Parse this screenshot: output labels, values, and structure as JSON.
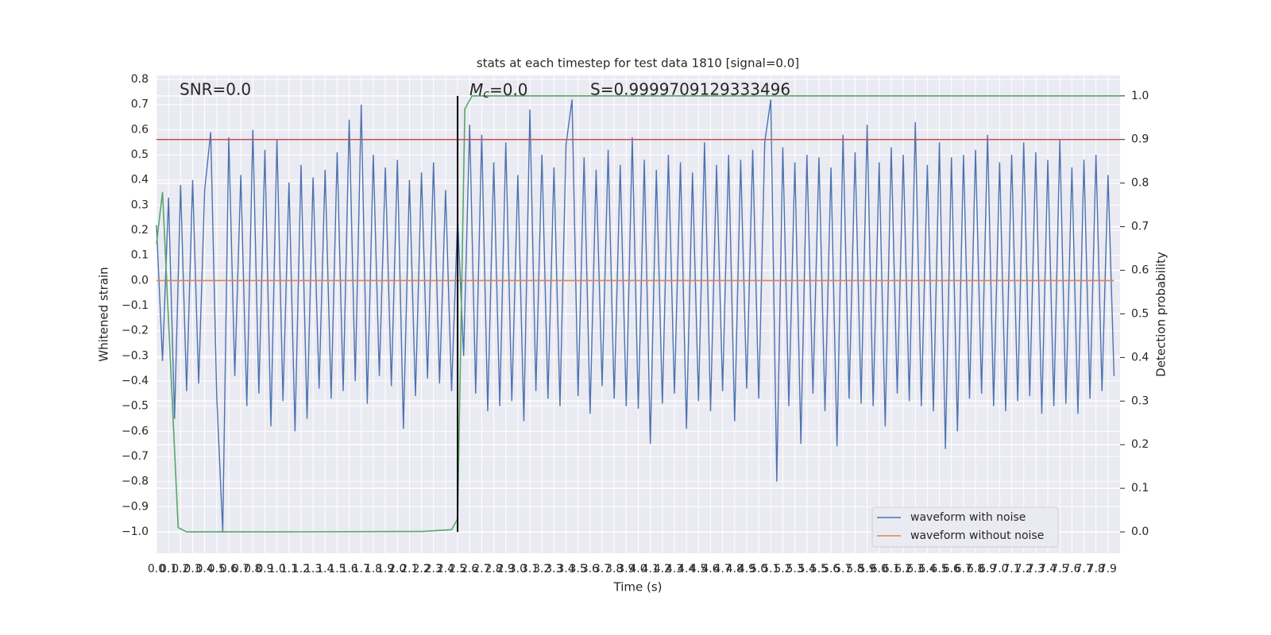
{
  "chart_data": {
    "type": "line",
    "title": "stats at each timestep for test data 1810 [signal=0.0]",
    "x_label": "Time (s)",
    "y_label": "Whitened strain",
    "y2_label": "Detection probability",
    "annotations": {
      "snr": "SNR=0.0",
      "mc": {
        "symbol": "M",
        "subscript": "c",
        "text": "=0.0"
      },
      "s": "S=0.9999709129333496"
    },
    "legend": "lower right",
    "grid": true,
    "xlim": [
      0,
      8.0
    ],
    "ylim": [
      -1.085,
      0.816
    ],
    "y2lim": [
      -0.049,
      1.047
    ],
    "xticks": [
      {
        "value": 0,
        "label": "0.0"
      },
      {
        "value": 0.1,
        "label": "0.1"
      },
      {
        "value": 0.2,
        "label": "0.2"
      },
      {
        "value": 0.3,
        "label": "0.3"
      },
      {
        "value": 0.4,
        "label": "0.4"
      },
      {
        "value": 0.5,
        "label": "0.5"
      },
      {
        "value": 0.6,
        "label": "0.6"
      },
      {
        "value": 0.7,
        "label": "0.7"
      },
      {
        "value": 0.8,
        "label": "0.8"
      },
      {
        "value": 0.9,
        "label": "0.9"
      },
      {
        "value": 1,
        "label": "1.0"
      },
      {
        "value": 1.1,
        "label": "1.1"
      },
      {
        "value": 1.2,
        "label": "1.2"
      },
      {
        "value": 1.3,
        "label": "1.3"
      },
      {
        "value": 1.4,
        "label": "1.4"
      },
      {
        "value": 1.5,
        "label": "1.5"
      },
      {
        "value": 1.6,
        "label": "1.6"
      },
      {
        "value": 1.7,
        "label": "1.7"
      },
      {
        "value": 1.8,
        "label": "1.8"
      },
      {
        "value": 1.9,
        "label": "1.9"
      },
      {
        "value": 2,
        "label": "2.0"
      },
      {
        "value": 2.1,
        "label": "2.1"
      },
      {
        "value": 2.2,
        "label": "2.2"
      },
      {
        "value": 2.3,
        "label": "2.3"
      },
      {
        "value": 2.4,
        "label": "2.4"
      },
      {
        "value": 2.5,
        "label": "2.5"
      },
      {
        "value": 2.6,
        "label": "2.6"
      },
      {
        "value": 2.7,
        "label": "2.7"
      },
      {
        "value": 2.8,
        "label": "2.8"
      },
      {
        "value": 2.9,
        "label": "2.9"
      },
      {
        "value": 3,
        "label": "3.0"
      },
      {
        "value": 3.1,
        "label": "3.1"
      },
      {
        "value": 3.2,
        "label": "3.2"
      },
      {
        "value": 3.3,
        "label": "3.3"
      },
      {
        "value": 3.4,
        "label": "3.4"
      },
      {
        "value": 3.5,
        "label": "3.5"
      },
      {
        "value": 3.6,
        "label": "3.6"
      },
      {
        "value": 3.7,
        "label": "3.7"
      },
      {
        "value": 3.8,
        "label": "3.8"
      },
      {
        "value": 3.9,
        "label": "3.9"
      },
      {
        "value": 4,
        "label": "4.0"
      },
      {
        "value": 4.1,
        "label": "4.1"
      },
      {
        "value": 4.2,
        "label": "4.2"
      },
      {
        "value": 4.3,
        "label": "4.3"
      },
      {
        "value": 4.4,
        "label": "4.4"
      },
      {
        "value": 4.5,
        "label": "4.5"
      },
      {
        "value": 4.6,
        "label": "4.6"
      },
      {
        "value": 4.7,
        "label": "4.7"
      },
      {
        "value": 4.8,
        "label": "4.8"
      },
      {
        "value": 4.9,
        "label": "4.9"
      },
      {
        "value": 5,
        "label": "5.0"
      },
      {
        "value": 5.1,
        "label": "5.1"
      },
      {
        "value": 5.2,
        "label": "5.2"
      },
      {
        "value": 5.3,
        "label": "5.3"
      },
      {
        "value": 5.4,
        "label": "5.4"
      },
      {
        "value": 5.5,
        "label": "5.5"
      },
      {
        "value": 5.6,
        "label": "5.6"
      },
      {
        "value": 5.7,
        "label": "5.7"
      },
      {
        "value": 5.8,
        "label": "5.8"
      },
      {
        "value": 5.9,
        "label": "5.9"
      },
      {
        "value": 6,
        "label": "6.0"
      },
      {
        "value": 6.1,
        "label": "6.1"
      },
      {
        "value": 6.2,
        "label": "6.2"
      },
      {
        "value": 6.3,
        "label": "6.3"
      },
      {
        "value": 6.4,
        "label": "6.4"
      },
      {
        "value": 6.5,
        "label": "6.5"
      },
      {
        "value": 6.6,
        "label": "6.6"
      },
      {
        "value": 6.7,
        "label": "6.7"
      },
      {
        "value": 6.8,
        "label": "6.8"
      },
      {
        "value": 6.9,
        "label": "6.9"
      },
      {
        "value": 7,
        "label": "7.0"
      },
      {
        "value": 7.1,
        "label": "7.1"
      },
      {
        "value": 7.2,
        "label": "7.2"
      },
      {
        "value": 7.3,
        "label": "7.3"
      },
      {
        "value": 7.4,
        "label": "7.4"
      },
      {
        "value": 7.5,
        "label": "7.5"
      },
      {
        "value": 7.6,
        "label": "7.6"
      },
      {
        "value": 7.7,
        "label": "7.7"
      },
      {
        "value": 7.8,
        "label": "7.8"
      },
      {
        "value": 7.9,
        "label": "7.9"
      }
    ],
    "yticks": [
      {
        "value": -1,
        "label": "−1.0"
      },
      {
        "value": -0.9,
        "label": "−0.9"
      },
      {
        "value": -0.8,
        "label": "−0.8"
      },
      {
        "value": -0.7,
        "label": "−0.7"
      },
      {
        "value": -0.6,
        "label": "−0.6"
      },
      {
        "value": -0.5,
        "label": "−0.5"
      },
      {
        "value": -0.4,
        "label": "−0.4"
      },
      {
        "value": -0.3,
        "label": "−0.3"
      },
      {
        "value": -0.2,
        "label": "−0.2"
      },
      {
        "value": -0.1,
        "label": "−0.1"
      },
      {
        "value": 0,
        "label": "0.0"
      },
      {
        "value": 0.1,
        "label": "0.1"
      },
      {
        "value": 0.2,
        "label": "0.2"
      },
      {
        "value": 0.3,
        "label": "0.3"
      },
      {
        "value": 0.4,
        "label": "0.4"
      },
      {
        "value": 0.5,
        "label": "0.5"
      },
      {
        "value": 0.6,
        "label": "0.6"
      },
      {
        "value": 0.7,
        "label": "0.7"
      },
      {
        "value": 0.8,
        "label": "0.8"
      }
    ],
    "y2ticks": [
      {
        "value": 0,
        "label": "0.0"
      },
      {
        "value": 0.1,
        "label": "0.1"
      },
      {
        "value": 0.2,
        "label": "0.2"
      },
      {
        "value": 0.3,
        "label": "0.3"
      },
      {
        "value": 0.4,
        "label": "0.4"
      },
      {
        "value": 0.5,
        "label": "0.5"
      },
      {
        "value": 0.6,
        "label": "0.6"
      },
      {
        "value": 0.7,
        "label": "0.7"
      },
      {
        "value": 0.8,
        "label": "0.8"
      },
      {
        "value": 0.9,
        "label": "0.9"
      },
      {
        "value": 1,
        "label": "1.0"
      }
    ],
    "series": [
      {
        "name": "waveform with noise",
        "color": "#4c72b0",
        "x": [
          0,
          0.05,
          0.1,
          0.15,
          0.2,
          0.25,
          0.3,
          0.35,
          0.4,
          0.45,
          0.5,
          0.55,
          0.6,
          0.65,
          0.7,
          0.75,
          0.8,
          0.85,
          0.9,
          0.95,
          1,
          1.05,
          1.1,
          1.15,
          1.2,
          1.25,
          1.3,
          1.35,
          1.4,
          1.45,
          1.5,
          1.55,
          1.6,
          1.65,
          1.7,
          1.75,
          1.8,
          1.85,
          1.9,
          1.95,
          2,
          2.05,
          2.1,
          2.15,
          2.2,
          2.25,
          2.3,
          2.35,
          2.4,
          2.45,
          2.5,
          2.55,
          2.6,
          2.65,
          2.7,
          2.75,
          2.8,
          2.85,
          2.9,
          2.95,
          3,
          3.05,
          3.1,
          3.15,
          3.2,
          3.25,
          3.3,
          3.35,
          3.4,
          3.45,
          3.5,
          3.55,
          3.6,
          3.65,
          3.7,
          3.75,
          3.8,
          3.85,
          3.9,
          3.95,
          4,
          4.05,
          4.1,
          4.15,
          4.2,
          4.25,
          4.3,
          4.35,
          4.4,
          4.45,
          4.5,
          4.55,
          4.6,
          4.65,
          4.7,
          4.75,
          4.8,
          4.85,
          4.9,
          4.95,
          5,
          5.05,
          5.1,
          5.15,
          5.2,
          5.25,
          5.3,
          5.35,
          5.4,
          5.45,
          5.5,
          5.55,
          5.6,
          5.65,
          5.7,
          5.75,
          5.8,
          5.85,
          5.9,
          5.95,
          6,
          6.05,
          6.1,
          6.15,
          6.2,
          6.25,
          6.3,
          6.35,
          6.4,
          6.45,
          6.5,
          6.55,
          6.6,
          6.65,
          6.7,
          6.75,
          6.8,
          6.85,
          6.9,
          6.95,
          7,
          7.05,
          7.1,
          7.15,
          7.2,
          7.25,
          7.3,
          7.35,
          7.4,
          7.45,
          7.5,
          7.55,
          7.6,
          7.65,
          7.7,
          7.75,
          7.8,
          7.85,
          7.9,
          7.95
        ],
        "values": [
          0.22,
          -0.32,
          0.33,
          -0.55,
          0.38,
          -0.44,
          0.4,
          -0.41,
          0.36,
          0.59,
          -0.46,
          -1.0,
          0.57,
          -0.38,
          0.42,
          -0.5,
          0.6,
          -0.45,
          0.52,
          -0.58,
          0.56,
          -0.48,
          0.39,
          -0.6,
          0.46,
          -0.55,
          0.41,
          -0.43,
          0.44,
          -0.47,
          0.51,
          -0.44,
          0.64,
          -0.4,
          0.7,
          -0.49,
          0.5,
          -0.38,
          0.45,
          -0.42,
          0.48,
          -0.59,
          0.4,
          -0.46,
          0.43,
          -0.39,
          0.47,
          -0.41,
          0.36,
          -0.44,
          0.25,
          -0.3,
          0.62,
          -0.45,
          0.58,
          -0.52,
          0.47,
          -0.5,
          0.55,
          -0.48,
          0.42,
          -0.56,
          0.68,
          -0.44,
          0.5,
          -0.47,
          0.45,
          -0.5,
          0.54,
          0.72,
          -0.46,
          0.49,
          -0.53,
          0.44,
          -0.42,
          0.52,
          -0.47,
          0.46,
          -0.5,
          0.57,
          -0.51,
          0.48,
          -0.65,
          0.44,
          -0.49,
          0.5,
          -0.45,
          0.47,
          -0.59,
          0.43,
          -0.48,
          0.55,
          -0.52,
          0.46,
          -0.44,
          0.5,
          -0.56,
          0.48,
          -0.43,
          0.52,
          -0.47,
          0.55,
          0.72,
          -0.8,
          0.53,
          -0.5,
          0.47,
          -0.65,
          0.5,
          -0.45,
          0.49,
          -0.52,
          0.45,
          -0.66,
          0.58,
          -0.47,
          0.51,
          -0.49,
          0.62,
          -0.5,
          0.47,
          -0.58,
          0.53,
          -0.45,
          0.5,
          -0.48,
          0.63,
          -0.5,
          0.46,
          -0.52,
          0.55,
          -0.67,
          0.49,
          -0.6,
          0.5,
          -0.47,
          0.52,
          -0.45,
          0.58,
          -0.5,
          0.47,
          -0.52,
          0.5,
          -0.48,
          0.55,
          -0.46,
          0.51,
          -0.53,
          0.48,
          -0.5,
          0.56,
          -0.49,
          0.45,
          -0.53,
          0.48,
          -0.47,
          0.5,
          -0.44,
          0.42,
          -0.38
        ]
      },
      {
        "name": "waveform without noise",
        "color": "#dd8452",
        "x": [
          0,
          7.95
        ],
        "values": [
          0,
          0
        ]
      },
      {
        "color": "#55a868",
        "axis": "y2",
        "x": [
          0,
          0.05,
          0.18,
          0.25,
          1.0,
          2.2,
          2.45,
          2.5,
          2.56,
          2.62,
          8.0
        ],
        "values": [
          0.66,
          0.78,
          0.01,
          0.0,
          0.0,
          0.001,
          0.005,
          0.03,
          0.97,
          1.0,
          1.0
        ]
      }
    ],
    "hline": {
      "y2": 0.9,
      "color": "#c44e52"
    },
    "vline": {
      "x": 2.5,
      "y2": [
        0,
        1
      ],
      "color": "#000000"
    }
  }
}
